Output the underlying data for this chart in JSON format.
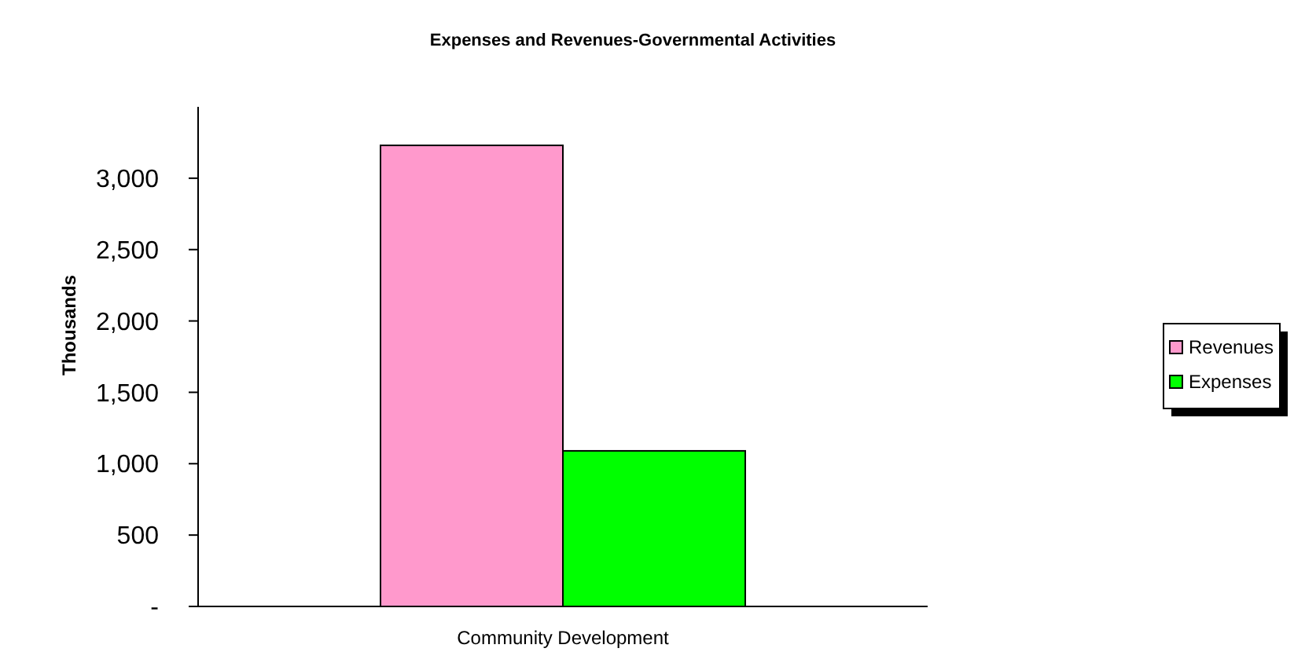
{
  "chart_data": {
    "type": "bar",
    "title": "Expenses and Revenues-Governmental Activities",
    "ylabel": "Thousands",
    "categories": [
      "Community Development"
    ],
    "series": [
      {
        "name": "Revenues",
        "color": "#ff99cc",
        "values": [
          3230
        ]
      },
      {
        "name": "Expenses",
        "color": "#00ff00",
        "values": [
          1090
        ]
      }
    ],
    "ylim": [
      0,
      3500
    ],
    "yticks": [
      {
        "value": 0,
        "label": "-"
      },
      {
        "value": 500,
        "label": "500"
      },
      {
        "value": 1000,
        "label": "1,000"
      },
      {
        "value": 1500,
        "label": "1,500"
      },
      {
        "value": 2000,
        "label": "2,000"
      },
      {
        "value": 2500,
        "label": "2,500"
      },
      {
        "value": 3000,
        "label": "3,000"
      }
    ],
    "grid": false,
    "legend": "right"
  }
}
